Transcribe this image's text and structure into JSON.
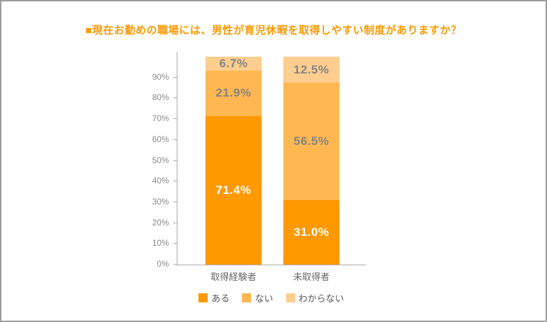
{
  "title": "■現在お勤めの職場には、男性が育児休暇を取得しやすい制度がありますか？",
  "colors": {
    "title": "#ff9900",
    "axis_line": "#acacac",
    "tick_label": "#898989",
    "category_label": "#666666",
    "frame_border": "#9c9c9c",
    "background": "#ffffff"
  },
  "chart_data": {
    "type": "bar",
    "stacked": true,
    "orientation": "vertical",
    "title": "■現在お勤めの職場には、男性が育児休暇を取得しやすい制度がありますか？",
    "categories": [
      "取得経験者",
      "未取得者"
    ],
    "series": [
      {
        "name": "ある",
        "values": [
          71.4,
          31.0
        ],
        "color": "#ff9900",
        "label_color": "#ffffff"
      },
      {
        "name": "ない",
        "values": [
          21.9,
          56.5
        ],
        "color": "#ffb851",
        "label_color": "#848484"
      },
      {
        "name": "わからない",
        "values": [
          6.7,
          12.5
        ],
        "color": "#ffcd8e",
        "label_color": "#848484"
      }
    ],
    "value_suffix": "%",
    "xlabel": "",
    "ylabel": "",
    "ylim": [
      0,
      100
    ],
    "yticks": [
      "0%",
      "10%",
      "20%",
      "30%",
      "40%",
      "50%",
      "60%",
      "70%",
      "80%",
      "90%"
    ],
    "grid": false,
    "legend_position": "bottom",
    "legend_items": [
      "ある",
      "ない",
      "わからない"
    ]
  }
}
